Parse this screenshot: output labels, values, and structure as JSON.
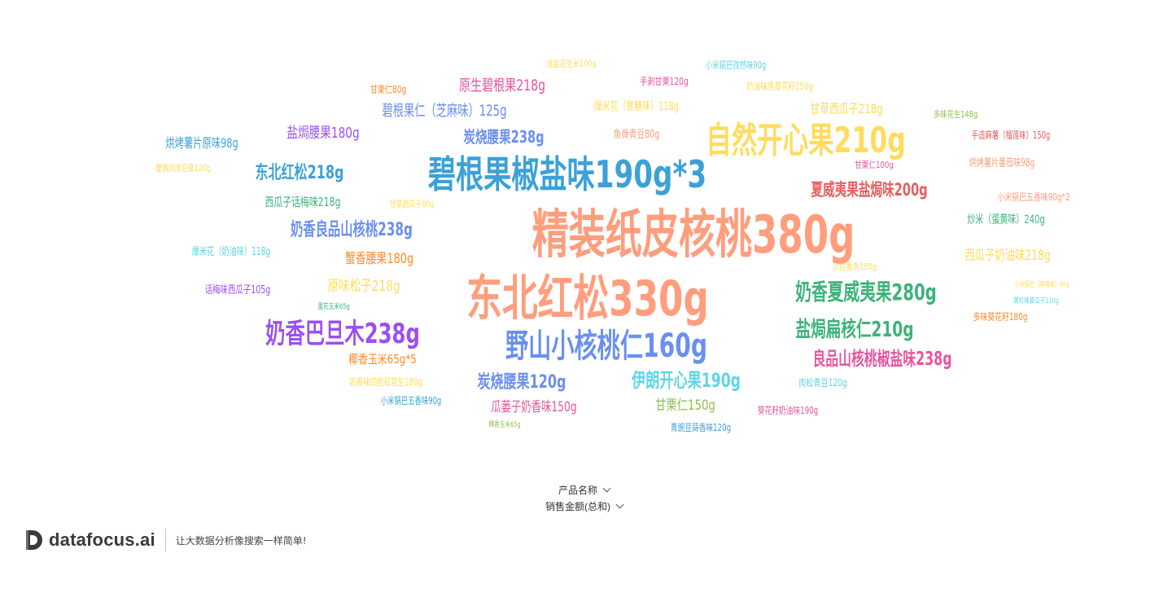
{
  "controls": {
    "dimension_label": "产品名称",
    "measure_label": "销售金额(总和)"
  },
  "brand": {
    "name": "datafocus.ai",
    "slogan": "让大数据分析像搜索一样简单!"
  },
  "chart_data": {
    "type": "wordcloud",
    "dimension": "产品名称",
    "measure": "销售金额(总和)",
    "words": [
      {
        "text": "精装纸皮核桃380g",
        "size": 64,
        "color": "#ff9e7d"
      },
      {
        "text": "东北红松330g",
        "size": 60,
        "color": "#ff9e7d"
      },
      {
        "text": "碧根果椒盐味190g*3",
        "size": 46,
        "color": "#3ba1d8"
      },
      {
        "text": "自然开心果210g",
        "size": 44,
        "color": "#ffdc5e"
      },
      {
        "text": "野山小核桃仁160g",
        "size": 40,
        "color": "#6a8ff0"
      },
      {
        "text": "奶香巴旦木238g",
        "size": 34,
        "color": "#9b4ff0"
      },
      {
        "text": "奶香夏威夷果280g",
        "size": 28,
        "color": "#3db37a"
      },
      {
        "text": "盐焗扁核仁210g",
        "size": 26,
        "color": "#3db37a"
      },
      {
        "text": "伊朗开心果190g",
        "size": 24,
        "color": "#5fd5e6"
      },
      {
        "text": "良品山核桃椒盐味238g",
        "size": 23,
        "color": "#e8549e"
      },
      {
        "text": "奶香良品山核桃238g",
        "size": 22,
        "color": "#6a8ff0"
      },
      {
        "text": "东北红松218g",
        "size": 22,
        "color": "#3ba1d8"
      },
      {
        "text": "夏威夷果盐焗味200g",
        "size": 21,
        "color": "#e85d5d"
      },
      {
        "text": "炭烧腰果120g",
        "size": 22,
        "color": "#6a8ff0"
      },
      {
        "text": "炭烧腰果238g",
        "size": 20,
        "color": "#6a8ff0"
      },
      {
        "text": "碧根果仁（芝麻味）125g",
        "size": 19,
        "color": "#6a8ff0"
      },
      {
        "text": "原生碧根果218g",
        "size": 19,
        "color": "#e8549e"
      },
      {
        "text": "盐焗腰果180g",
        "size": 18,
        "color": "#9b4ff0"
      },
      {
        "text": "原味松子218g",
        "size": 18,
        "color": "#ffdc5e"
      },
      {
        "text": "蟹香腰果180g",
        "size": 17,
        "color": "#ff8a2a"
      },
      {
        "text": "西瓜子奶油味218g",
        "size": 17,
        "color": "#ffdc5e"
      },
      {
        "text": "甘草西瓜子218g",
        "size": 16,
        "color": "#ffdc5e"
      },
      {
        "text": "瓜蒌子奶香味150g",
        "size": 17,
        "color": "#e8549e"
      },
      {
        "text": "甘栗仁150g",
        "size": 17,
        "color": "#8fbf4a"
      },
      {
        "text": "烘烤薯片原味98g",
        "size": 16,
        "color": "#3ba1d8"
      },
      {
        "text": "西瓜子话梅味218g",
        "size": 15,
        "color": "#3db37a"
      },
      {
        "text": "椰香玉米65g*5",
        "size": 15,
        "color": "#ff8a2a"
      },
      {
        "text": "爆米花（焦糖味）118g",
        "size": 14,
        "color": "#ffdc5e"
      },
      {
        "text": "炒米（蛋黄味）240g",
        "size": 14,
        "color": "#3db37a"
      },
      {
        "text": "鱼骨青豆80g",
        "size": 13,
        "color": "#ff9e7d"
      },
      {
        "text": "烘烤薯片番茄味98g",
        "size": 13,
        "color": "#ff9e7d"
      },
      {
        "text": "爆米花（奶油味）118g",
        "size": 13,
        "color": "#5fd5e6"
      },
      {
        "text": "话梅味西瓜子105g",
        "size": 13,
        "color": "#9b4ff0"
      },
      {
        "text": "手造麻薯（榴莲味）150g",
        "size": 12,
        "color": "#e85d5d"
      },
      {
        "text": "小米锅巴五香味90g*2",
        "size": 12,
        "color": "#ff9e7d"
      },
      {
        "text": "小米锅巴孜然味90g",
        "size": 12,
        "color": "#5fd5e6"
      },
      {
        "text": "手剥甘栗120g",
        "size": 12,
        "color": "#e8549e"
      },
      {
        "text": "奶油味黑葵花籽150g",
        "size": 12,
        "color": "#ffdc5e"
      },
      {
        "text": "甘栗仁80g",
        "size": 12,
        "color": "#ff8a2a"
      },
      {
        "text": "多味花生148g",
        "size": 11,
        "color": "#8fbf4a"
      },
      {
        "text": "甘栗仁100g",
        "size": 11,
        "color": "#e8549e"
      },
      {
        "text": "肉松青豆120g",
        "size": 12,
        "color": "#5fd5e6"
      },
      {
        "text": "小米锅巴五香味90g",
        "size": 12,
        "color": "#3ba1d8"
      },
      {
        "text": "葵花籽奶油味190g",
        "size": 12,
        "color": "#e8549e"
      },
      {
        "text": "青豌豆蒜香味120g",
        "size": 12,
        "color": "#3ba1d8"
      },
      {
        "text": "奶香味四粒红花生180g",
        "size": 12,
        "color": "#ffdc5e"
      },
      {
        "text": "多味葵花籽180g",
        "size": 12,
        "color": "#ff8a2a"
      },
      {
        "text": "蟹黄风味豆瓣120g",
        "size": 11,
        "color": "#ffdc5e"
      },
      {
        "text": "甘草西瓜子90g",
        "size": 11,
        "color": "#ffdc5e"
      },
      {
        "text": "淮盐花生米100g",
        "size": 11,
        "color": "#ffdc5e"
      },
      {
        "text": "沙拉薯条150g",
        "size": 11,
        "color": "#ffdc5e"
      },
      {
        "text": "小米锅巴（麻辣味）90g",
        "size": 9,
        "color": "#ffdc5e"
      },
      {
        "text": "黑珍珠葵瓜子110g",
        "size": 9,
        "color": "#5fd5e6"
      },
      {
        "text": "蛋花玉米65g",
        "size": 9,
        "color": "#3db37a"
      },
      {
        "text": "椰香玉米65g",
        "size": 9,
        "color": "#8fbf4a"
      }
    ]
  }
}
